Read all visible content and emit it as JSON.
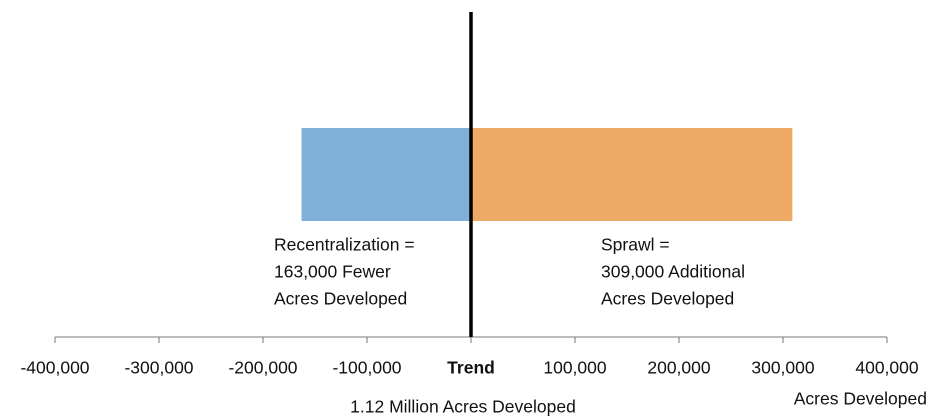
{
  "chart_data": {
    "type": "bar",
    "orientation": "horizontal",
    "values": [
      -163000,
      309000
    ],
    "colors": [
      "#7eb0d9",
      "#eda965"
    ],
    "xlim": [
      -400000,
      400000
    ],
    "xticks": [
      {
        "value": -400000,
        "label": "-400,000"
      },
      {
        "value": -300000,
        "label": "-300,000"
      },
      {
        "value": -200000,
        "label": "-200,000"
      },
      {
        "value": -100000,
        "label": "-100,000"
      },
      {
        "value": 0,
        "label": "Trend"
      },
      {
        "value": 100000,
        "label": "100,000"
      },
      {
        "value": 200000,
        "label": "200,000"
      },
      {
        "value": 300000,
        "label": "300,000"
      },
      {
        "value": 400000,
        "label": "400,000"
      }
    ],
    "subtitle": "1.12 Million Acres Developed",
    "xlabel": "Acres Developed",
    "annotations": [
      {
        "lines": [
          "Recentralization =",
          "163,000 Fewer",
          "Acres Developed"
        ]
      },
      {
        "lines": [
          "Sprawl =",
          "309,000 Additional",
          "Acres Developed"
        ]
      }
    ]
  }
}
